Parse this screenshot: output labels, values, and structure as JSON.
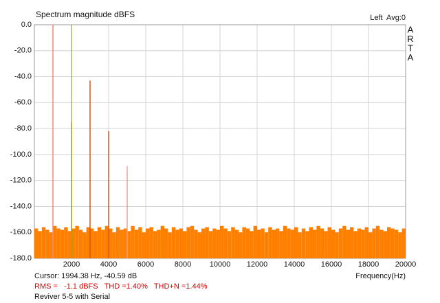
{
  "chart_data": {
    "type": "spectrum",
    "title": "Spectrum magnitude dBFS",
    "channel_label": "Left  Avg:0",
    "brand_letters": [
      "A",
      "R",
      "T",
      "A"
    ],
    "x_label": "Frequency(Hz)",
    "xlim": [
      0,
      20000
    ],
    "xticks": [
      2000,
      4000,
      6000,
      8000,
      10000,
      12000,
      14000,
      16000,
      18000,
      20000
    ],
    "ylim": [
      -180,
      0
    ],
    "yticks": [
      {
        "value": 0,
        "label": "0.0"
      },
      {
        "value": -20,
        "label": "-20.0"
      },
      {
        "value": -40,
        "label": "-40.0"
      },
      {
        "value": -60,
        "label": "-60.0"
      },
      {
        "value": -80,
        "label": "-80.0"
      },
      {
        "value": -100,
        "label": "-100.0"
      },
      {
        "value": -120,
        "label": "-120.0"
      },
      {
        "value": -140,
        "label": "-140.0"
      },
      {
        "value": -160,
        "label": "-160.0"
      },
      {
        "value": -180,
        "label": "-180.0"
      }
    ],
    "grid": true,
    "noise": {
      "color": "#ff8000",
      "bins": [
        0,
        200,
        400,
        600,
        800,
        1000,
        1200,
        1400,
        1600,
        1800,
        2000,
        2200,
        2400,
        2600,
        2800,
        3000,
        3200,
        3400,
        3600,
        3800,
        4000,
        4200,
        4400,
        4600,
        4800,
        5000,
        5200,
        5400,
        5600,
        5800,
        6000,
        6200,
        6400,
        6600,
        6800,
        7000,
        7200,
        7400,
        7600,
        7800,
        8000,
        8200,
        8400,
        8600,
        8800,
        9000,
        9200,
        9400,
        9600,
        9800,
        10000,
        10200,
        10400,
        10600,
        10800,
        11000,
        11200,
        11400,
        11600,
        11800,
        12000,
        12200,
        12400,
        12600,
        12800,
        13000,
        13200,
        13400,
        13600,
        13800,
        14000,
        14200,
        14400,
        14600,
        14800,
        15000,
        15200,
        15400,
        15600,
        15800,
        16000,
        16200,
        16400,
        16600,
        16800,
        17000,
        17200,
        17400,
        17600,
        17800,
        18000,
        18200,
        18400,
        18600,
        18800,
        19000,
        19200,
        19400,
        19600,
        19800,
        20000
      ],
      "values": [
        -157,
        -159,
        -156,
        -158,
        -160,
        -155,
        -157,
        -158,
        -156,
        -159,
        -157,
        -155,
        -158,
        -160,
        -156,
        -157,
        -159,
        -156,
        -158,
        -155,
        -157,
        -160,
        -156,
        -158,
        -157,
        -159,
        -155,
        -158,
        -156,
        -160,
        -157,
        -156,
        -159,
        -158,
        -155,
        -157,
        -160,
        -156,
        -158,
        -157,
        -159,
        -156,
        -155,
        -158,
        -160,
        -157,
        -156,
        -159,
        -157,
        -158,
        -155,
        -157,
        -159,
        -156,
        -158,
        -160,
        -156,
        -157,
        -159,
        -155,
        -158,
        -157,
        -160,
        -156,
        -158,
        -157,
        -159,
        -155,
        -157,
        -158,
        -156,
        -160,
        -157,
        -159,
        -156,
        -158,
        -155,
        -157,
        -159,
        -156,
        -158,
        -160,
        -157,
        -155,
        -158,
        -156,
        -159,
        -157,
        -158,
        -156,
        -160,
        -157,
        -155,
        -158,
        -159,
        -156,
        -157,
        -158,
        -160,
        -157
      ]
    },
    "peaks": {
      "x": [
        1000,
        2000,
        3000,
        4000,
        5000
      ],
      "values": [
        0,
        -75,
        -43,
        -82,
        -109
      ],
      "colors": [
        "#f08a78",
        "#ff8000",
        "#d05a10",
        "#d05a10",
        "#f4a090"
      ]
    },
    "cursor": {
      "x": 1994.38,
      "color": "#80b030",
      "text": "Cursor: 1994.38 Hz, -40.59 dB"
    },
    "stats_text": "RMS =   -1.1 dBFS   THD =1.40%   THD+N =1.44%",
    "caption": "Reviver 5-5 with Serial"
  }
}
